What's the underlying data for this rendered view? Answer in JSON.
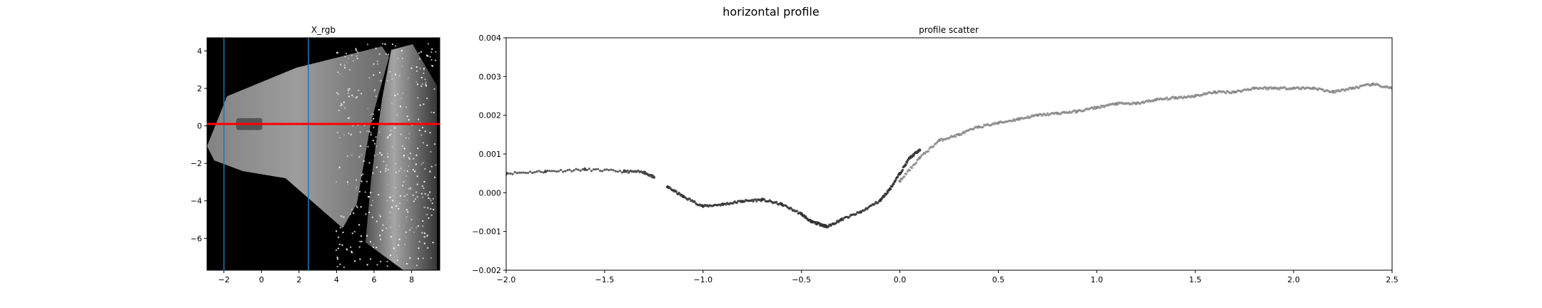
{
  "figure": {
    "suptitle": "horizontal profile"
  },
  "chart_data": [
    {
      "type": "image",
      "title": "X_rgb",
      "xlim": [
        -2.9,
        9.5
      ],
      "ylim": [
        -7.7,
        4.7
      ],
      "xticks": [
        -2,
        0,
        2,
        4,
        6,
        8
      ],
      "yticks": [
        -6,
        -4,
        -2,
        0,
        2,
        4
      ],
      "vlines": [
        -2.0,
        2.5
      ],
      "hline": 0.1,
      "colors": {
        "vline": "#1f77b4",
        "hline": "#ff0000",
        "background": "#000000"
      }
    },
    {
      "type": "scatter",
      "title": "profile scatter",
      "xlabel": "",
      "ylabel": "",
      "xlim": [
        -2.0,
        2.5
      ],
      "ylim": [
        -0.002,
        0.004
      ],
      "xticks": [
        -2.0,
        -1.5,
        -1.0,
        -0.5,
        0.0,
        0.5,
        1.0,
        1.5,
        2.0,
        2.5
      ],
      "yticks": [
        -0.002,
        -0.001,
        0.0,
        0.001,
        0.002,
        0.003,
        0.004
      ],
      "xtick_labels": [
        "−2.0",
        "−1.5",
        "−1.0",
        "−0.5",
        "0.0",
        "0.5",
        "1.0",
        "1.5",
        "2.0",
        "2.5"
      ],
      "ytick_labels": [
        "−0.002",
        "−0.001",
        "0.000",
        "0.001",
        "0.002",
        "0.003",
        "0.004"
      ],
      "segments": [
        {
          "x": [
            -2.0,
            -1.8,
            -1.6,
            -1.4,
            -1.3,
            -1.25
          ],
          "y": [
            0.0005,
            0.00055,
            0.0006,
            0.00055,
            0.00053,
            0.0004
          ],
          "color": "#444444"
        },
        {
          "x": [
            -1.18,
            -1.1,
            -1.0,
            -0.9,
            -0.8,
            -0.7,
            -0.6,
            -0.5,
            -0.45,
            -0.4,
            -0.37,
            -0.3,
            -0.2,
            -0.1,
            -0.05,
            0.0,
            0.05,
            0.1
          ],
          "y": [
            0.00015,
            -0.0001,
            -0.00035,
            -0.0003,
            -0.00022,
            -0.00018,
            -0.0003,
            -0.00055,
            -0.00075,
            -0.00082,
            -0.00088,
            -0.0007,
            -0.0005,
            -0.0002,
            0.0001,
            0.0005,
            0.0009,
            0.0011
          ],
          "color": "#333333"
        },
        {
          "x": [
            0.0,
            0.1,
            0.2,
            0.3,
            0.4,
            0.5,
            0.6,
            0.7,
            0.8,
            0.9,
            1.0,
            1.1,
            1.2,
            1.3,
            1.4,
            1.5,
            1.6,
            1.7,
            1.8,
            1.9,
            2.0,
            2.1,
            2.2,
            2.3,
            2.4,
            2.5
          ],
          "y": [
            0.0003,
            0.0009,
            0.00135,
            0.0015,
            0.0017,
            0.0018,
            0.0019,
            0.002,
            0.00205,
            0.0021,
            0.0022,
            0.0023,
            0.0023,
            0.0024,
            0.00245,
            0.0025,
            0.0026,
            0.0026,
            0.0027,
            0.0027,
            0.0027,
            0.0027,
            0.0026,
            0.0027,
            0.0028,
            0.0027
          ],
          "color": "#8a8a8a"
        }
      ]
    }
  ]
}
